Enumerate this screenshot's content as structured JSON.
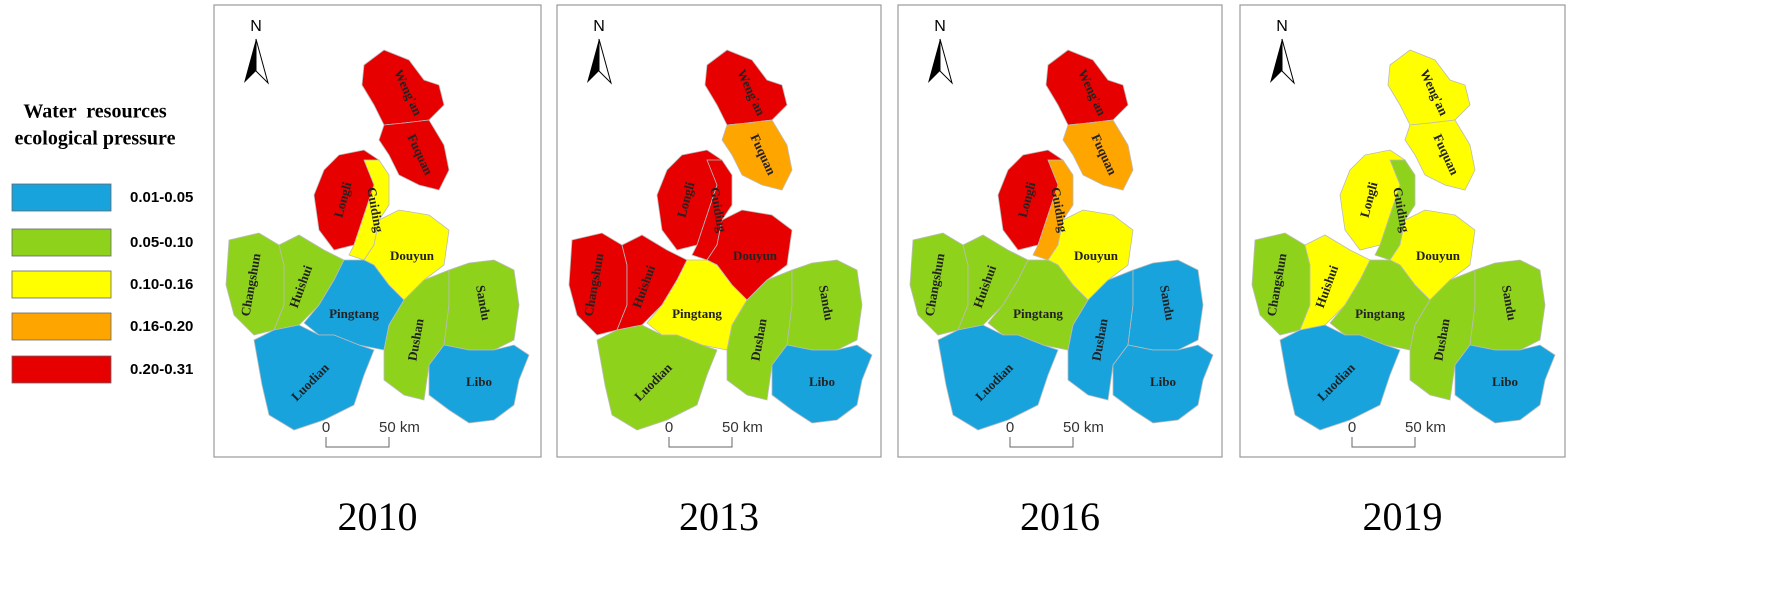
{
  "legend": {
    "title": [
      "Water  resources",
      "ecological pressure"
    ],
    "items": [
      {
        "label": "0.01-0.05",
        "color": "#18a3dd"
      },
      {
        "label": "0.05-0.10",
        "color": "#8fd21c"
      },
      {
        "label": "0.10-0.16",
        "color": "#ffff00"
      },
      {
        "label": "0.16-0.20",
        "color": "#ffa500"
      },
      {
        "label": "0.20-0.31",
        "color": "#e60000"
      }
    ]
  },
  "panels": [
    {
      "year": "2010",
      "north": "N",
      "scale": [
        "0",
        "50 km"
      ],
      "counties": [
        {
          "name": "Weng'an",
          "color": "#e60000"
        },
        {
          "name": "Fuquan",
          "color": "#e60000"
        },
        {
          "name": "Longli",
          "color": "#e60000"
        },
        {
          "name": "Guiding",
          "color": "#ffff00"
        },
        {
          "name": "Douyun",
          "color": "#ffff00"
        },
        {
          "name": "Changshun",
          "color": "#8fd21c"
        },
        {
          "name": "Huishui",
          "color": "#8fd21c"
        },
        {
          "name": "Pingtang",
          "color": "#18a3dd"
        },
        {
          "name": "Luodian",
          "color": "#18a3dd"
        },
        {
          "name": "Dushan",
          "color": "#8fd21c"
        },
        {
          "name": "Sandu",
          "color": "#8fd21c"
        },
        {
          "name": "Libo",
          "color": "#18a3dd"
        }
      ]
    },
    {
      "year": "2013",
      "north": "N",
      "scale": [
        "0",
        "50 km"
      ],
      "counties": [
        {
          "name": "Weng'an",
          "color": "#e60000"
        },
        {
          "name": "Fuquan",
          "color": "#ffa500"
        },
        {
          "name": "Longli",
          "color": "#e60000"
        },
        {
          "name": "Guiding",
          "color": "#e60000"
        },
        {
          "name": "Douyun",
          "color": "#e60000"
        },
        {
          "name": "Changshun",
          "color": "#e60000"
        },
        {
          "name": "Huishui",
          "color": "#e60000"
        },
        {
          "name": "Pingtang",
          "color": "#ffff00"
        },
        {
          "name": "Luodian",
          "color": "#8fd21c"
        },
        {
          "name": "Dushan",
          "color": "#8fd21c"
        },
        {
          "name": "Sandu",
          "color": "#8fd21c"
        },
        {
          "name": "Libo",
          "color": "#18a3dd"
        }
      ]
    },
    {
      "year": "2016",
      "north": "N",
      "scale": [
        "0",
        "50 km"
      ],
      "counties": [
        {
          "name": "Weng'an",
          "color": "#e60000"
        },
        {
          "name": "Fuquan",
          "color": "#ffa500"
        },
        {
          "name": "Longli",
          "color": "#e60000"
        },
        {
          "name": "Guiding",
          "color": "#ffa500"
        },
        {
          "name": "Douyun",
          "color": "#ffff00"
        },
        {
          "name": "Changshun",
          "color": "#8fd21c"
        },
        {
          "name": "Huishui",
          "color": "#8fd21c"
        },
        {
          "name": "Pingtang",
          "color": "#8fd21c"
        },
        {
          "name": "Luodian",
          "color": "#18a3dd"
        },
        {
          "name": "Dushan",
          "color": "#18a3dd"
        },
        {
          "name": "Sandu",
          "color": "#18a3dd"
        },
        {
          "name": "Libo",
          "color": "#18a3dd"
        }
      ]
    },
    {
      "year": "2019",
      "north": "N",
      "scale": [
        "0",
        "50 km"
      ],
      "counties": [
        {
          "name": "Weng'an",
          "color": "#ffff00"
        },
        {
          "name": "Fuquan",
          "color": "#ffff00"
        },
        {
          "name": "Longli",
          "color": "#ffff00"
        },
        {
          "name": "Guiding",
          "color": "#8fd21c"
        },
        {
          "name": "Douyun",
          "color": "#ffff00"
        },
        {
          "name": "Changshun",
          "color": "#8fd21c"
        },
        {
          "name": "Huishui",
          "color": "#ffff00"
        },
        {
          "name": "Pingtang",
          "color": "#8fd21c"
        },
        {
          "name": "Luodian",
          "color": "#18a3dd"
        },
        {
          "name": "Dushan",
          "color": "#8fd21c"
        },
        {
          "name": "Sandu",
          "color": "#8fd21c"
        },
        {
          "name": "Libo",
          "color": "#18a3dd"
        }
      ]
    }
  ]
}
